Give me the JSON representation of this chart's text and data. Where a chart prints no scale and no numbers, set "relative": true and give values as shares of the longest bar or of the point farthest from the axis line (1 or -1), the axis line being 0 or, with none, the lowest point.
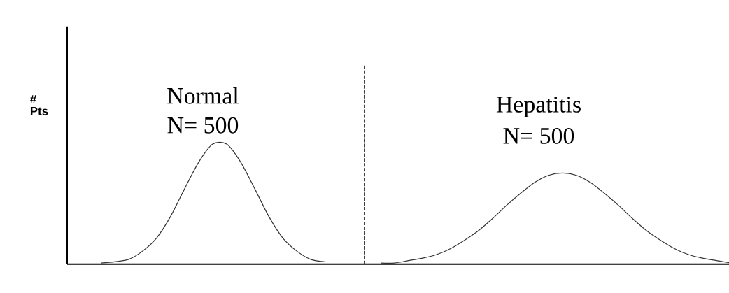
{
  "chart_data": {
    "type": "line",
    "relative": true,
    "ylabel": "# Pts",
    "categories": [
      null,
      null,
      null,
      null,
      null,
      null,
      null,
      null,
      null,
      null,
      null,
      null,
      null,
      null,
      null,
      null,
      null,
      null,
      null,
      null,
      null,
      null,
      null,
      null,
      null,
      null,
      null,
      null,
      null,
      null,
      null,
      null,
      null,
      null,
      null,
      null,
      null,
      null,
      null,
      null,
      null,
      null,
      null,
      null,
      null,
      null,
      null
    ],
    "series": [
      {
        "name": "Normal",
        "color": "#333333",
        "values": [
          0.01,
          0.02,
          0.04,
          0.11,
          0.22,
          0.4,
          0.63,
          0.85,
          1,
          1,
          0.85,
          0.63,
          0.4,
          0.22,
          0.11,
          0.04,
          0.02,
          null,
          null,
          null,
          null,
          null,
          null,
          null,
          null,
          null,
          null,
          null,
          null,
          null,
          null,
          null,
          null,
          null,
          null,
          null,
          null,
          null,
          null,
          null,
          null,
          null,
          null,
          null,
          null,
          null,
          null
        ]
      },
      {
        "name": "Hepatitis",
        "color": "#333333",
        "values": [
          null,
          null,
          null,
          null,
          null,
          null,
          null,
          null,
          null,
          null,
          null,
          null,
          null,
          null,
          null,
          null,
          null,
          null,
          null,
          null,
          0.01,
          0.01,
          0.03,
          0.05,
          0.08,
          0.13,
          0.2,
          0.28,
          0.38,
          0.49,
          0.59,
          0.68,
          0.74,
          0.76,
          0.74,
          0.68,
          0.59,
          0.49,
          0.38,
          0.28,
          0.2,
          0.13,
          0.08,
          0.05,
          0.03,
          0.01,
          null
        ]
      }
    ],
    "annotations": [
      "N= 500",
      "N= 500"
    ],
    "marker": "none",
    "line_style": "solid"
  }
}
